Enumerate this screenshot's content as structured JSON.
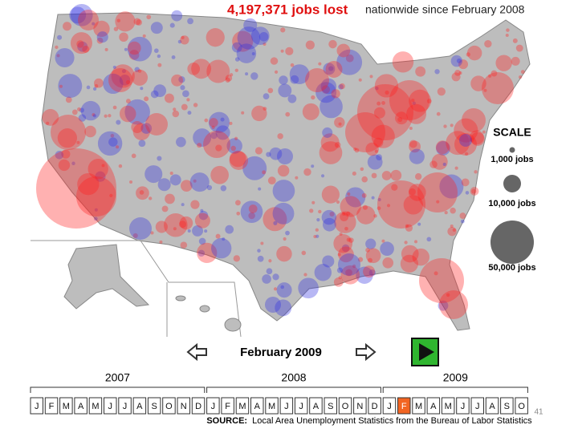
{
  "headline": {
    "count": "4,197,371 jobs lost",
    "rest": "nationwide since February 2008"
  },
  "scale": {
    "title": "SCALE",
    "items": [
      "1,000 jobs",
      "10,000 jobs",
      "50,000 jobs"
    ]
  },
  "navigation": {
    "current": "February 2009"
  },
  "timeline": {
    "years": [
      {
        "year": "2007",
        "months": [
          "J",
          "F",
          "M",
          "A",
          "M",
          "J",
          "J",
          "A",
          "S",
          "O",
          "N",
          "D"
        ]
      },
      {
        "year": "2008",
        "months": [
          "J",
          "F",
          "M",
          "A",
          "M",
          "J",
          "J",
          "A",
          "S",
          "O",
          "N",
          "D"
        ]
      },
      {
        "year": "2009",
        "months": [
          "J",
          "F",
          "M",
          "A",
          "M",
          "J",
          "J",
          "A",
          "S",
          "O"
        ]
      }
    ],
    "selected": {
      "year": 2,
      "month": 1
    }
  },
  "source": {
    "label": "SOURCE:",
    "text": "Local Area Unemployment Statistics from the Bureau of Labor Statistics"
  },
  "page_number": "41"
}
